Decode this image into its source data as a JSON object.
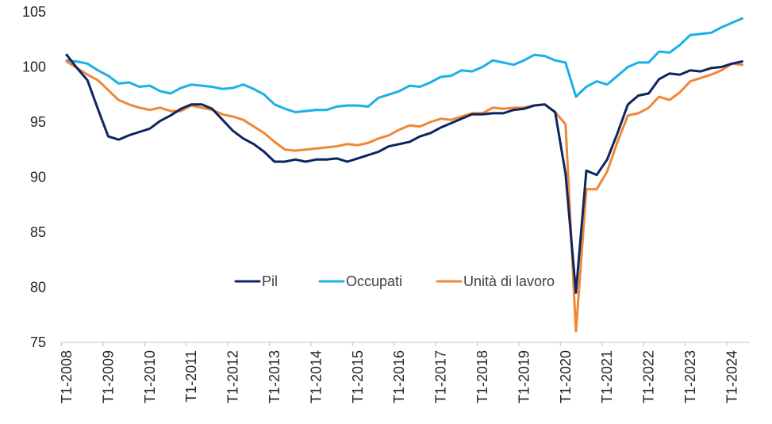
{
  "chart_data": {
    "type": "line",
    "ylim": [
      75,
      105
    ],
    "yticks": [
      75,
      80,
      85,
      90,
      95,
      100,
      105
    ],
    "xtick_labels": [
      "T1-2008",
      "T1-2009",
      "T1-2010",
      "T1-2011",
      "T1-2012",
      "T1-2013",
      "T1-2014",
      "T1-2015",
      "T1-2016",
      "T1-2017",
      "T1-2018",
      "T1-2019",
      "T1-2020",
      "T1-2021",
      "T1-2022",
      "T1-2023",
      "T1-2024"
    ],
    "grid": false,
    "legend_position": "center",
    "series": [
      {
        "name": "Pil",
        "color": "#0d2560",
        "values": [
          101.1,
          99.9,
          98.8,
          96.2,
          93.7,
          93.4,
          93.8,
          94.1,
          94.4,
          95.1,
          95.6,
          96.2,
          96.6,
          96.6,
          96.2,
          95.2,
          94.2,
          93.5,
          93.0,
          92.3,
          91.4,
          91.4,
          91.6,
          91.4,
          91.6,
          91.6,
          91.7,
          91.4,
          91.7,
          92.0,
          92.3,
          92.8,
          93.0,
          93.2,
          93.7,
          94.0,
          94.5,
          94.9,
          95.3,
          95.7,
          95.7,
          95.8,
          95.8,
          96.1,
          96.2,
          96.5,
          96.6,
          95.9,
          90.3,
          79.5,
          90.6,
          90.2,
          91.6,
          94.0,
          96.6,
          97.4,
          97.6,
          98.9,
          99.4,
          99.3,
          99.7,
          99.6,
          99.9,
          100.0,
          100.3,
          100.5
        ]
      },
      {
        "name": "Occupati",
        "color": "#1ab0e8",
        "values": [
          100.6,
          100.5,
          100.3,
          99.7,
          99.2,
          98.5,
          98.6,
          98.2,
          98.3,
          97.8,
          97.6,
          98.1,
          98.4,
          98.3,
          98.2,
          98.0,
          98.1,
          98.4,
          98.0,
          97.5,
          96.6,
          96.2,
          95.9,
          96.0,
          96.1,
          96.1,
          96.4,
          96.5,
          96.5,
          96.4,
          97.2,
          97.5,
          97.8,
          98.3,
          98.2,
          98.6,
          99.1,
          99.2,
          99.7,
          99.6,
          100.0,
          100.6,
          100.4,
          100.2,
          100.6,
          101.1,
          101.0,
          100.6,
          100.4,
          97.3,
          98.2,
          98.7,
          98.4,
          99.2,
          100.0,
          100.4,
          100.4,
          101.4,
          101.3,
          102.0,
          102.9,
          103.0,
          103.1,
          103.6,
          104.0,
          104.4
        ]
      },
      {
        "name": "Unità di lavoro",
        "color": "#ee8737",
        "values": [
          100.5,
          99.9,
          99.3,
          98.8,
          97.9,
          97.0,
          96.6,
          96.3,
          96.1,
          96.3,
          96.0,
          96.0,
          96.5,
          96.3,
          96.1,
          95.7,
          95.5,
          95.2,
          94.6,
          94.0,
          93.2,
          92.5,
          92.4,
          92.5,
          92.6,
          92.7,
          92.8,
          93.0,
          92.9,
          93.1,
          93.5,
          93.8,
          94.3,
          94.7,
          94.6,
          95.0,
          95.3,
          95.2,
          95.5,
          95.8,
          95.8,
          96.3,
          96.2,
          96.3,
          96.3,
          96.5,
          96.6,
          95.9,
          94.8,
          76.0,
          88.9,
          88.9,
          90.5,
          93.2,
          95.6,
          95.8,
          96.3,
          97.3,
          97.0,
          97.7,
          98.7,
          99.0,
          99.3,
          99.7,
          100.3,
          100.2
        ]
      }
    ]
  }
}
